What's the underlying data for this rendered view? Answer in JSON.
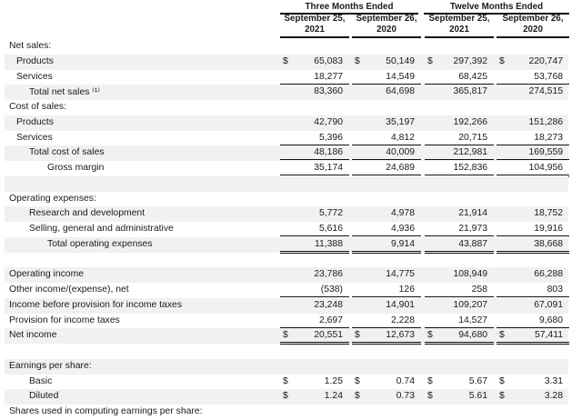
{
  "header": {
    "groups": [
      "Three Months Ended",
      "Twelve Months Ended"
    ],
    "columns": [
      {
        "line1": "September 25,",
        "line2": "2021"
      },
      {
        "line1": "September 26,",
        "line2": "2020"
      },
      {
        "line1": "September 25,",
        "line2": "2021"
      },
      {
        "line1": "September 26,",
        "line2": "2020"
      }
    ]
  },
  "currency_symbol": "$",
  "rows": [
    {
      "label": "Net sales:",
      "indent": 0
    },
    {
      "label": "Products",
      "indent": 1,
      "values": [
        "65,083",
        "50,149",
        "297,392",
        "220,747"
      ],
      "dollar": true
    },
    {
      "label": "Services",
      "indent": 1,
      "values": [
        "18,277",
        "14,549",
        "68,425",
        "53,768"
      ],
      "rule": "single"
    },
    {
      "label": "Total net sales ⁽¹⁾",
      "indent": 2,
      "values": [
        "83,360",
        "64,698",
        "365,817",
        "274,515"
      ]
    },
    {
      "label": "Cost of sales:",
      "indent": 0
    },
    {
      "label": "Products",
      "indent": 1,
      "values": [
        "42,790",
        "35,197",
        "192,266",
        "151,286"
      ]
    },
    {
      "label": "Services",
      "indent": 1,
      "values": [
        "5,396",
        "4,812",
        "20,715",
        "18,273"
      ],
      "rule": "single"
    },
    {
      "label": "Total cost of sales",
      "indent": 2,
      "values": [
        "48,186",
        "40,009",
        "212,981",
        "169,559"
      ],
      "rule": "single"
    },
    {
      "label": "Gross margin",
      "indent": 3,
      "values": [
        "35,174",
        "24,689",
        "152,836",
        "104,956"
      ],
      "rule": "double"
    },
    {
      "label": ""
    },
    {
      "label": "Operating expenses:",
      "indent": 0
    },
    {
      "label": "Research and development",
      "indent": 2,
      "values": [
        "5,772",
        "4,978",
        "21,914",
        "18,752"
      ]
    },
    {
      "label": "Selling, general and administrative",
      "indent": 2,
      "values": [
        "5,616",
        "4,936",
        "21,973",
        "19,916"
      ],
      "rule": "single"
    },
    {
      "label": "Total operating expenses",
      "indent": 3,
      "values": [
        "11,388",
        "9,914",
        "43,887",
        "38,668"
      ],
      "rule": "double"
    },
    {
      "label": ""
    },
    {
      "label": "Operating income",
      "indent": 0,
      "values": [
        "23,786",
        "14,775",
        "108,949",
        "66,288"
      ]
    },
    {
      "label": "Other income/(expense), net",
      "indent": 0,
      "values": [
        "(538)",
        "126",
        "258",
        "803"
      ],
      "rule": "single"
    },
    {
      "label": "Income before provision for income taxes",
      "indent": 0,
      "values": [
        "23,248",
        "14,901",
        "109,207",
        "67,091"
      ]
    },
    {
      "label": "Provision for income taxes",
      "indent": 0,
      "values": [
        "2,697",
        "2,228",
        "14,527",
        "9,680"
      ],
      "rule": "single"
    },
    {
      "label": "Net income",
      "indent": 0,
      "values": [
        "20,551",
        "12,673",
        "94,680",
        "57,411"
      ],
      "dollar": true,
      "rule": "double"
    },
    {
      "label": ""
    },
    {
      "label": "Earnings per share:",
      "indent": 0
    },
    {
      "label": "Basic",
      "indent": 2,
      "values": [
        "1.25",
        "0.74",
        "5.67",
        "3.31"
      ],
      "dollar": true
    },
    {
      "label": "Diluted",
      "indent": 2,
      "values": [
        "1.24",
        "0.73",
        "5.61",
        "3.28"
      ],
      "dollar": true
    },
    {
      "label": "Shares used in computing earnings per share:",
      "indent": 0
    }
  ]
}
